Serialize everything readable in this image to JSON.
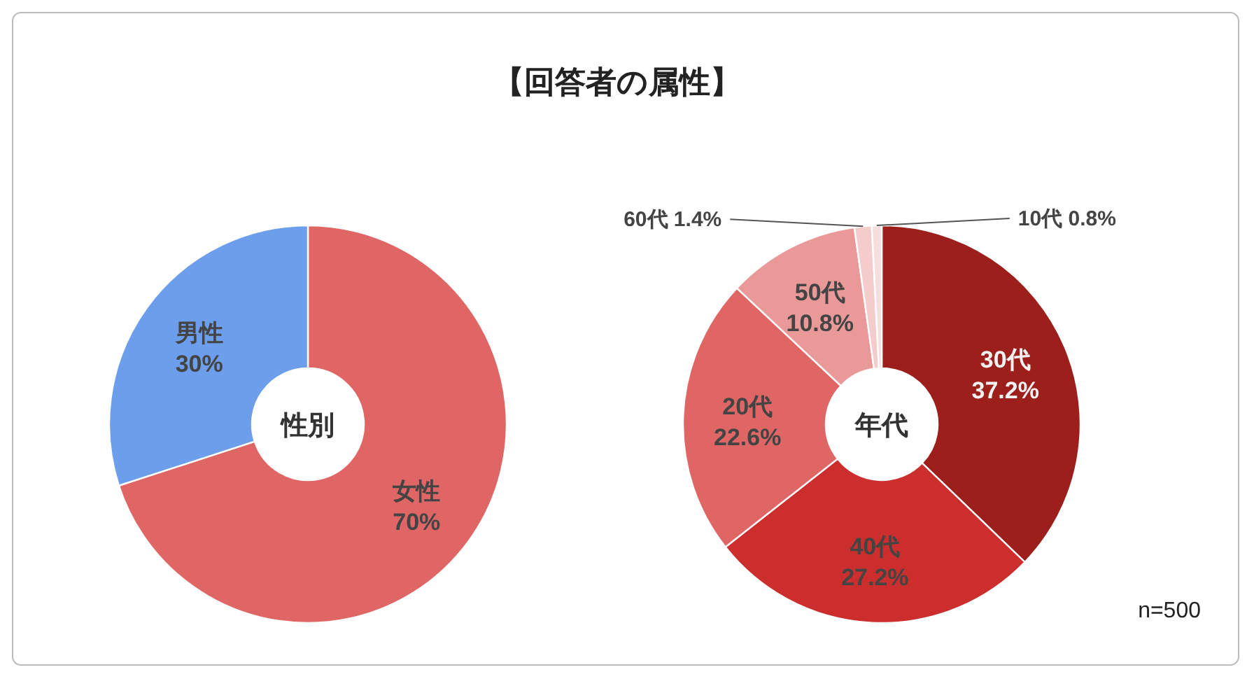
{
  "chart_data": [
    {
      "type": "donut",
      "title": "【回答者の属性】",
      "annotations": [
        "性別"
      ],
      "categories": [
        "女性",
        "男性"
      ],
      "values": [
        70,
        30
      ],
      "value_labels": [
        "70%",
        "30%"
      ],
      "colors": [
        "#e06666",
        "#6d9eeb"
      ]
    },
    {
      "type": "donut",
      "annotations": [
        "年代",
        "n=500"
      ],
      "categories": [
        "30代",
        "40代",
        "20代",
        "50代",
        "60代",
        "10代"
      ],
      "values": [
        37.2,
        27.2,
        22.6,
        10.8,
        1.4,
        0.8
      ],
      "value_labels": [
        "37.2%",
        "27.2%",
        "22.6%",
        "10.8%",
        "1.4%",
        "0.8%"
      ],
      "colors": [
        "#9c1f1c",
        "#cc2e2e",
        "#e06666",
        "#ea9999",
        "#f4cccc",
        "#f6dede"
      ]
    }
  ]
}
